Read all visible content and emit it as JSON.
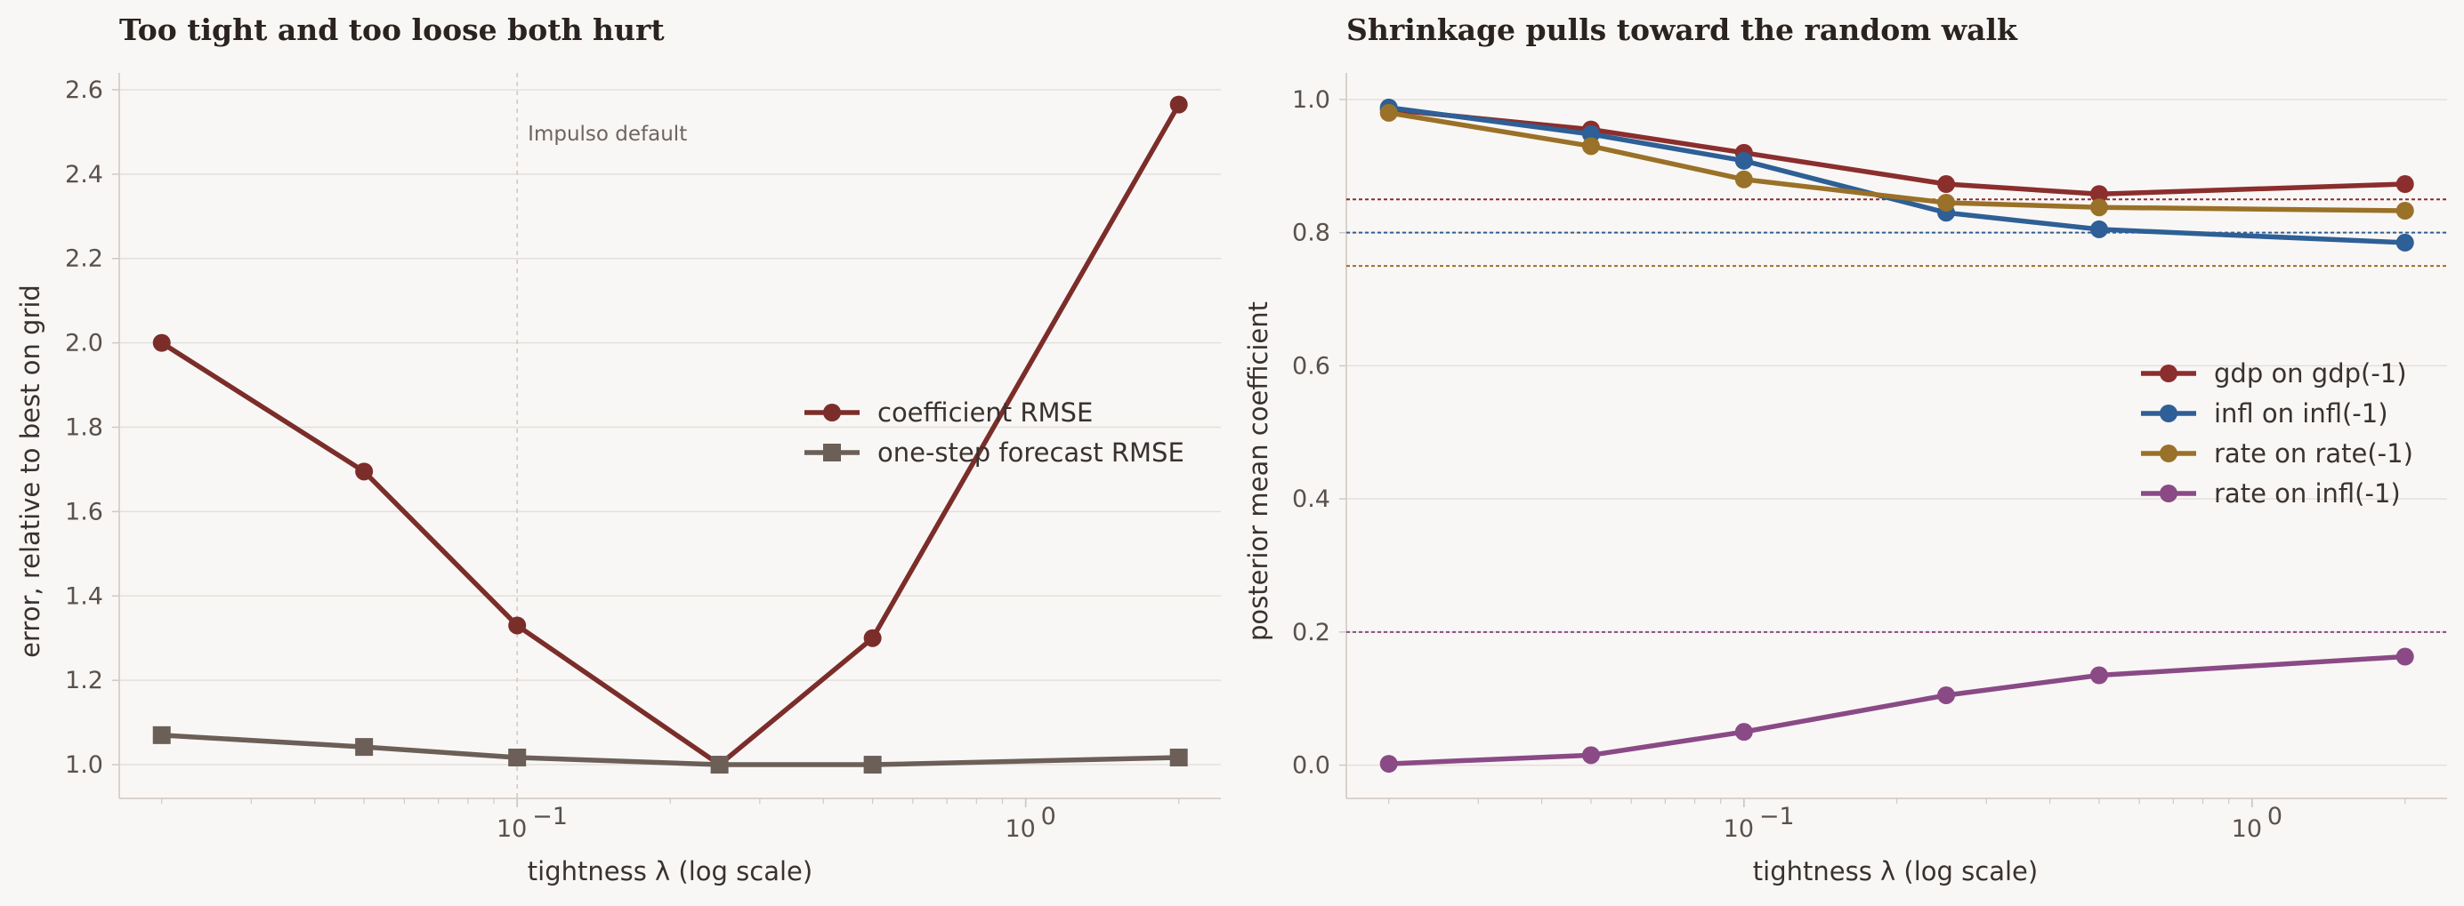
{
  "chart_data": [
    {
      "type": "line",
      "title": "Too tight and too loose both hurt",
      "xlabel": "tightness λ (log scale)",
      "ylabel": "error, relative to best on grid",
      "xscale": "log",
      "x": [
        0.02,
        0.05,
        0.1,
        0.25,
        0.5,
        2.0
      ],
      "ylim": [
        0.92,
        2.64
      ],
      "yticks": [
        "1.0",
        "1.2",
        "1.4",
        "1.6",
        "1.8",
        "2.0",
        "2.2",
        "2.4",
        "2.6"
      ],
      "xtick_labels": {
        "major1": "10",
        "major1_exp": "−1",
        "major2": "10",
        "major2_exp": "0"
      },
      "series": [
        {
          "name": "coefficient RMSE",
          "values": [
            2.0,
            1.695,
            1.33,
            1.0,
            1.3,
            2.565
          ],
          "color": "#7b2d2a",
          "marker": "circle"
        },
        {
          "name": "one-step forecast RMSE",
          "values": [
            1.07,
            1.042,
            1.017,
            1.0,
            1.0,
            1.017
          ],
          "color": "#6b5f57",
          "marker": "square"
        }
      ],
      "annotation": {
        "x": 0.1,
        "label": "Impulso default"
      },
      "legend_position": "center-right",
      "grid": "horizontal"
    },
    {
      "type": "line",
      "title": "Shrinkage pulls toward the random walk",
      "xlabel": "tightness λ (log scale)",
      "ylabel": "posterior mean coefficient",
      "xscale": "log",
      "x": [
        0.02,
        0.05,
        0.1,
        0.25,
        0.5,
        2.0
      ],
      "ylim": [
        -0.05,
        1.04
      ],
      "yticks": [
        "0.0",
        "0.2",
        "0.4",
        "0.6",
        "0.8",
        "1.0"
      ],
      "xtick_labels": {
        "major1": "10",
        "major1_exp": "−1",
        "major2": "10",
        "major2_exp": "0"
      },
      "series": [
        {
          "name": "gdp on gdp(-1)",
          "values": [
            0.985,
            0.955,
            0.92,
            0.873,
            0.858,
            0.873
          ],
          "color": "#8b2e2e",
          "ref": 0.85
        },
        {
          "name": "infl on infl(-1)",
          "values": [
            0.988,
            0.948,
            0.908,
            0.83,
            0.805,
            0.785
          ],
          "color": "#2e5f96",
          "ref": 0.8
        },
        {
          "name": "rate on rate(-1)",
          "values": [
            0.98,
            0.93,
            0.88,
            0.845,
            0.838,
            0.833
          ],
          "color": "#9a7128",
          "ref": 0.75
        },
        {
          "name": "rate on infl(-1)",
          "values": [
            0.002,
            0.015,
            0.05,
            0.105,
            0.135,
            0.163
          ],
          "color": "#8a4a86",
          "ref": 0.2
        }
      ],
      "legend_position": "center-right",
      "grid": "horizontal"
    }
  ]
}
